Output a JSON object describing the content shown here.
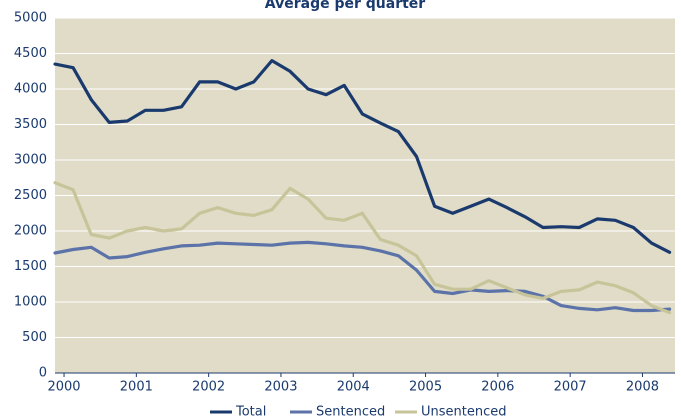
{
  "chart_data": {
    "type": "line",
    "title": "Average per quarter",
    "x": [
      1999.875,
      2000.125,
      2000.375,
      2000.625,
      2000.875,
      2001.125,
      2001.375,
      2001.625,
      2001.875,
      2002.125,
      2002.375,
      2002.625,
      2002.875,
      2003.125,
      2003.375,
      2003.625,
      2003.875,
      2004.125,
      2004.375,
      2004.625,
      2004.875,
      2005.125,
      2005.375,
      2005.625,
      2005.875,
      2006.125,
      2006.375,
      2006.625,
      2006.875,
      2007.125,
      2007.375,
      2007.625,
      2007.875,
      2008.125,
      2008.375
    ],
    "xlim": [
      1999.875,
      2008.45
    ],
    "xticks": [
      2000,
      2001,
      2002,
      2003,
      2004,
      2005,
      2006,
      2007,
      2008
    ],
    "ylim": [
      0,
      5000
    ],
    "yticks": [
      0,
      500,
      1000,
      1500,
      2000,
      2500,
      3000,
      3500,
      4000,
      4500,
      5000
    ],
    "grid": true,
    "legend": "bottom",
    "series": [
      {
        "name": "Total",
        "color": "#1a3a6e",
        "values": [
          4350,
          4300,
          3850,
          3530,
          3550,
          3700,
          3700,
          3750,
          4100,
          4100,
          4000,
          4100,
          4400,
          4250,
          4000,
          3920,
          4050,
          3650,
          3520,
          3400,
          3050,
          2350,
          2250,
          2350,
          2450,
          2330,
          2200,
          2050,
          2060,
          2050,
          2170,
          2150,
          2050,
          1830,
          1700
        ]
      },
      {
        "name": "Sentenced",
        "color": "#5b73a8",
        "values": [
          1690,
          1740,
          1770,
          1620,
          1640,
          1700,
          1750,
          1790,
          1800,
          1830,
          1820,
          1810,
          1800,
          1830,
          1840,
          1820,
          1790,
          1770,
          1720,
          1650,
          1450,
          1150,
          1120,
          1170,
          1150,
          1160,
          1150,
          1080,
          950,
          910,
          890,
          920,
          880,
          880,
          900
        ]
      },
      {
        "name": "Unsentenced",
        "color": "#c8c49a",
        "values": [
          2680,
          2580,
          1950,
          1900,
          2000,
          2050,
          2000,
          2030,
          2250,
          2330,
          2250,
          2220,
          2300,
          2600,
          2450,
          2180,
          2150,
          2250,
          1880,
          1800,
          1650,
          1250,
          1180,
          1180,
          1300,
          1200,
          1100,
          1050,
          1150,
          1170,
          1280,
          1230,
          1130,
          950,
          850
        ]
      }
    ]
  }
}
